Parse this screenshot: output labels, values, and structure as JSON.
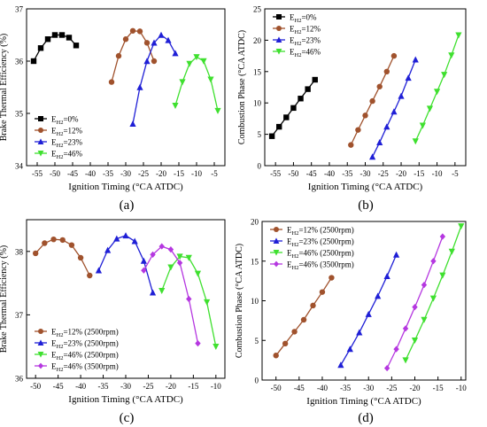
{
  "figure": {
    "panel_labels": [
      "(a)",
      "(b)",
      "(c)",
      "(d)"
    ]
  },
  "chart_data": [
    {
      "type": "line",
      "panel": "(a)",
      "xlabel": "Ignition Timing (°CA ATDC)",
      "ylabel": "Brake Thermal Efficiency (%)",
      "xlim": [
        -58,
        -2
      ],
      "ylim": [
        34,
        37
      ],
      "xticks": [
        -55,
        -50,
        -45,
        -40,
        -35,
        -30,
        -25,
        -20,
        -15,
        -10,
        -5
      ],
      "yticks": [
        34,
        35,
        36,
        37
      ],
      "legend_position": "lower-left",
      "series": [
        {
          "name": "E_H2=0%",
          "base": "E",
          "sub": "H2",
          "rest": "=0%",
          "color": "#000000",
          "marker": "square",
          "x": [
            -56,
            -54,
            -52,
            -50,
            -48,
            -46,
            -44
          ],
          "y": [
            36.0,
            36.25,
            36.42,
            36.5,
            36.5,
            36.45,
            36.3
          ]
        },
        {
          "name": "E_H2=12%",
          "base": "E",
          "sub": "H2",
          "rest": "=12%",
          "color": "#a0522d",
          "marker": "circle",
          "x": [
            -34,
            -32,
            -30,
            -28,
            -26,
            -24,
            -22
          ],
          "y": [
            35.6,
            36.1,
            36.42,
            36.58,
            36.57,
            36.35,
            36.0
          ]
        },
        {
          "name": "E_H2=23%",
          "base": "E",
          "sub": "H2",
          "rest": "=23%",
          "color": "#1f1fd6",
          "marker": "triangle-up",
          "x": [
            -28,
            -26,
            -24,
            -22,
            -20,
            -18,
            -16
          ],
          "y": [
            34.8,
            35.5,
            36.0,
            36.35,
            36.5,
            36.4,
            36.15
          ]
        },
        {
          "name": "E_H2=46%",
          "base": "E",
          "sub": "H2",
          "rest": "=46%",
          "color": "#3fe02f",
          "marker": "triangle-down",
          "x": [
            -16,
            -14,
            -12,
            -10,
            -8,
            -6,
            -4
          ],
          "y": [
            35.15,
            35.6,
            35.95,
            36.08,
            36.0,
            35.65,
            35.05
          ]
        }
      ]
    },
    {
      "type": "line",
      "panel": "(b)",
      "xlabel": "Ignition Timing (°CA ATDC)",
      "ylabel": "Combustion Phase (°CA ATDC)",
      "xlim": [
        -58,
        -2
      ],
      "ylim": [
        0,
        25
      ],
      "xticks": [
        -55,
        -50,
        -45,
        -40,
        -35,
        -30,
        -25,
        -20,
        -15,
        -10,
        -5
      ],
      "yticks": [
        0,
        5,
        10,
        15,
        20,
        25
      ],
      "legend_position": "top-left",
      "series": [
        {
          "name": "E_H2=0%",
          "base": "E",
          "sub": "H2",
          "rest": "=0%",
          "color": "#000000",
          "marker": "square",
          "x": [
            -56,
            -54,
            -52,
            -50,
            -48,
            -46,
            -44
          ],
          "y": [
            4.7,
            6.2,
            7.7,
            9.2,
            10.7,
            12.2,
            13.7
          ]
        },
        {
          "name": "E_H2=12%",
          "base": "E",
          "sub": "H2",
          "rest": "=12%",
          "color": "#a0522d",
          "marker": "circle",
          "x": [
            -34,
            -32,
            -30,
            -28,
            -26,
            -24,
            -22
          ],
          "y": [
            3.3,
            5.7,
            8.0,
            10.3,
            12.6,
            15.0,
            17.5
          ]
        },
        {
          "name": "E_H2=23%",
          "base": "E",
          "sub": "H2",
          "rest": "=23%",
          "color": "#1f1fd6",
          "marker": "triangle-up",
          "x": [
            -28,
            -26,
            -24,
            -22,
            -20,
            -18,
            -16
          ],
          "y": [
            1.4,
            3.7,
            6.2,
            8.6,
            11.1,
            14.0,
            16.9
          ]
        },
        {
          "name": "E_H2=46%",
          "base": "E",
          "sub": "H2",
          "rest": "=46%",
          "color": "#3fe02f",
          "marker": "triangle-down",
          "x": [
            -16,
            -14,
            -12,
            -10,
            -8,
            -6,
            -4
          ],
          "y": [
            3.9,
            6.4,
            9.1,
            11.8,
            14.5,
            17.6,
            20.8
          ]
        }
      ]
    },
    {
      "type": "line",
      "panel": "(c)",
      "xlabel": "Ignition Timing (°CA ATDC)",
      "ylabel": "Brake Thermal Efficiency (%)",
      "xlim": [
        -52,
        -8
      ],
      "ylim": [
        36,
        38.5
      ],
      "xticks": [
        -50,
        -45,
        -40,
        -35,
        -30,
        -25,
        -20,
        -15,
        -10
      ],
      "yticks": [
        36,
        37,
        38
      ],
      "legend_position": "lower-left",
      "series": [
        {
          "name": "E_H2=12% (2500rpm)",
          "base": "E",
          "sub": "H2",
          "rest": "=12% (2500rpm)",
          "color": "#a0522d",
          "marker": "circle",
          "x": [
            -50,
            -48,
            -46,
            -44,
            -42,
            -40,
            -38
          ],
          "y": [
            37.97,
            38.13,
            38.19,
            38.18,
            38.1,
            37.9,
            37.62
          ]
        },
        {
          "name": "E_H2=23% (2500rpm)",
          "base": "E",
          "sub": "H2",
          "rest": "=23% (2500rpm)",
          "color": "#1f1fd6",
          "marker": "triangle-up",
          "x": [
            -36,
            -34,
            -32,
            -30,
            -28,
            -26,
            -24
          ],
          "y": [
            37.7,
            38.02,
            38.2,
            38.25,
            38.16,
            37.85,
            37.35
          ]
        },
        {
          "name": "E_H2=46% (2500rpm)",
          "base": "E",
          "sub": "H2",
          "rest": "=46% (2500rpm)",
          "color": "#3fe02f",
          "marker": "triangle-down",
          "x": [
            -22,
            -20,
            -18,
            -16,
            -14,
            -12,
            -10
          ],
          "y": [
            37.38,
            37.75,
            37.92,
            37.9,
            37.65,
            37.2,
            36.5
          ]
        },
        {
          "name": "E_H2=46% (3500rpm)",
          "base": "E",
          "sub": "H2",
          "rest": "=46% (3500rpm)",
          "color": "#b537e0",
          "marker": "diamond",
          "x": [
            -26,
            -24,
            -22,
            -20,
            -18,
            -16,
            -14
          ],
          "y": [
            37.7,
            37.95,
            38.08,
            38.03,
            37.82,
            37.25,
            36.55
          ]
        }
      ]
    },
    {
      "type": "line",
      "panel": "(d)",
      "xlabel": "Ignition Timing (°CA ATDC)",
      "ylabel": "Combustion Phase (°CA ATDC)",
      "xlim": [
        -53,
        -9
      ],
      "ylim": [
        0,
        20
      ],
      "xticks": [
        -50,
        -45,
        -40,
        -35,
        -30,
        -25,
        -20,
        -15,
        -10
      ],
      "yticks": [
        0,
        5,
        10,
        15,
        20
      ],
      "legend_position": "top-left",
      "series": [
        {
          "name": "E_H2=12% (2500rpm)",
          "base": "E",
          "sub": "H2",
          "rest": "=12% (2500rpm)",
          "color": "#a0522d",
          "marker": "circle",
          "x": [
            -50,
            -48,
            -46,
            -44,
            -42,
            -40,
            -38
          ],
          "y": [
            3.1,
            4.6,
            6.1,
            7.6,
            9.4,
            11.1,
            12.9
          ]
        },
        {
          "name": "E_H2=23% (2500rpm)",
          "base": "E",
          "sub": "H2",
          "rest": "=23% (2500rpm)",
          "color": "#1f1fd6",
          "marker": "triangle-up",
          "x": [
            -36,
            -34,
            -32,
            -30,
            -28,
            -26,
            -24
          ],
          "y": [
            1.9,
            3.9,
            6.0,
            8.3,
            10.6,
            13.1,
            15.8
          ]
        },
        {
          "name": "E_H2=46% (2500rpm)",
          "base": "E",
          "sub": "H2",
          "rest": "=46% (2500rpm)",
          "color": "#3fe02f",
          "marker": "triangle-down",
          "x": [
            -22,
            -20,
            -18,
            -16,
            -14,
            -12,
            -10
          ],
          "y": [
            2.5,
            5.0,
            7.6,
            10.3,
            13.2,
            16.2,
            19.4
          ]
        },
        {
          "name": "E_H2=46% (3500rpm)",
          "base": "E",
          "sub": "H2",
          "rest": "=46% (3500rpm)",
          "color": "#b537e0",
          "marker": "diamond",
          "x": [
            -26,
            -24,
            -22,
            -20,
            -18,
            -16,
            -14
          ],
          "y": [
            1.5,
            3.9,
            6.5,
            9.2,
            12.0,
            15.0,
            18.1
          ]
        }
      ]
    }
  ]
}
